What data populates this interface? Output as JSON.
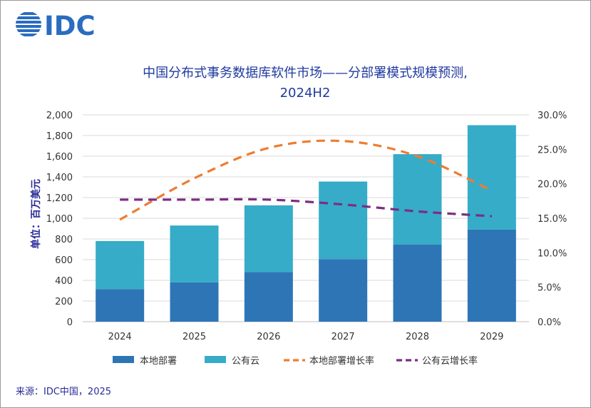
{
  "brand": {
    "logo_text": "IDC",
    "color": "#2a6cc0"
  },
  "source": "来源：IDC中国，2025",
  "chart_data": {
    "type": "bar",
    "stacked": true,
    "title_line1": "中国分布式事务数据库软件市场——分部署模式规模预测,",
    "title_line2": "2024H2",
    "ylabel": "单位：百万美元",
    "categories": [
      "2024",
      "2025",
      "2026",
      "2027",
      "2028",
      "2029"
    ],
    "ylim": [
      0,
      2000
    ],
    "y_ticks": [
      0,
      200,
      400,
      600,
      800,
      1000,
      1200,
      1400,
      1600,
      1800,
      2000
    ],
    "y_tick_labels": [
      "0",
      "200",
      "400",
      "600",
      "800",
      "1,000",
      "1,200",
      "1,400",
      "1,600",
      "1,800",
      "2,000"
    ],
    "y2lim": [
      0,
      30
    ],
    "y2_ticks": [
      0,
      5,
      10,
      15,
      20,
      25,
      30
    ],
    "y2_tick_labels": [
      "0.0%",
      "5.0%",
      "10.0%",
      "15.0%",
      "20.0%",
      "25.0%",
      "30.0%"
    ],
    "grid": true,
    "legend_position": "bottom",
    "series": [
      {
        "name": "本地部署",
        "kind": "bar",
        "axis": "left",
        "color": "#2e75b6",
        "values": [
          315,
          380,
          480,
          605,
          745,
          890
        ]
      },
      {
        "name": "公有云",
        "kind": "bar",
        "axis": "left",
        "color": "#36acc8",
        "values": [
          465,
          550,
          645,
          750,
          875,
          1010
        ]
      },
      {
        "name": "本地部署增长率",
        "kind": "line",
        "axis": "right",
        "color": "#ed7d31",
        "dash": true,
        "values": [
          14.8,
          20.8,
          25.2,
          26.2,
          24.0,
          19.0
        ]
      },
      {
        "name": "公有云增长率",
        "kind": "line",
        "axis": "right",
        "color": "#7b2d83",
        "dash": true,
        "values": [
          17.7,
          17.7,
          17.7,
          17.0,
          16.0,
          15.3
        ]
      }
    ]
  }
}
